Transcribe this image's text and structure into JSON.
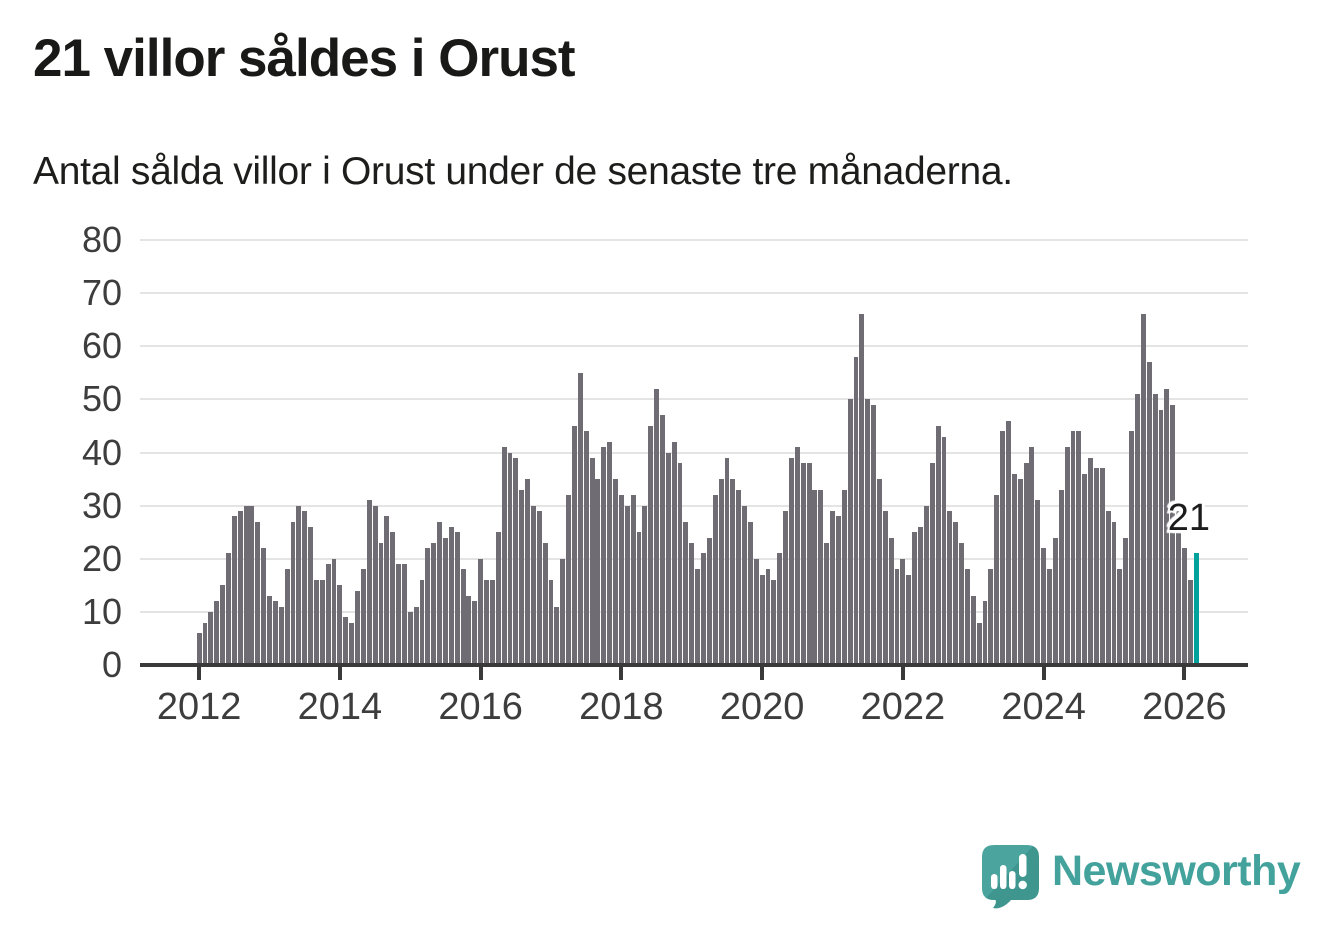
{
  "header": {
    "title": "21 villor såldes i Orust",
    "subtitle": "Antal sålda villor i Orust under de senaste tre månaderna."
  },
  "chart_data": {
    "type": "bar",
    "title": "21 villor såldes i Orust",
    "subtitle": "Antal sålda villor i Orust under de senaste tre månaderna.",
    "ylabel": "",
    "xlabel": "",
    "ylim": [
      0,
      80
    ],
    "y_ticks": [
      0,
      10,
      20,
      30,
      40,
      50,
      60,
      70,
      80
    ],
    "x_tick_labels": [
      "2012",
      "2014",
      "2016",
      "2018",
      "2020",
      "2022",
      "2024",
      "2026"
    ],
    "months_per_tick_step": 24,
    "grid": "horizontal",
    "bar_color": "#6F6D73",
    "highlight_color": "#00A29B",
    "highlight_index": 170,
    "values": [
      6,
      8,
      10,
      12,
      15,
      21,
      28,
      29,
      30,
      30,
      27,
      22,
      13,
      12,
      11,
      18,
      27,
      30,
      29,
      26,
      16,
      16,
      19,
      20,
      15,
      9,
      8,
      14,
      18,
      31,
      30,
      23,
      28,
      25,
      19,
      19,
      10,
      11,
      16,
      22,
      23,
      27,
      24,
      26,
      25,
      18,
      13,
      12,
      20,
      16,
      16,
      25,
      41,
      40,
      39,
      33,
      35,
      30,
      29,
      23,
      16,
      11,
      20,
      32,
      45,
      55,
      44,
      39,
      35,
      41,
      42,
      35,
      32,
      30,
      32,
      25,
      30,
      45,
      52,
      47,
      40,
      42,
      38,
      27,
      23,
      18,
      21,
      24,
      32,
      35,
      39,
      35,
      33,
      30,
      27,
      20,
      17,
      18,
      16,
      21,
      29,
      39,
      41,
      38,
      38,
      33,
      33,
      23,
      29,
      28,
      33,
      50,
      58,
      66,
      50,
      49,
      35,
      29,
      24,
      18,
      20,
      17,
      25,
      26,
      30,
      38,
      45,
      43,
      29,
      27,
      23,
      18,
      13,
      8,
      12,
      18,
      32,
      44,
      46,
      36,
      35,
      38,
      41,
      31,
      22,
      18,
      24,
      33,
      41,
      44,
      44,
      36,
      39,
      37,
      37,
      29,
      27,
      18,
      24,
      44,
      51,
      66,
      57,
      51,
      48,
      52,
      49,
      29,
      22,
      16,
      21
    ],
    "annotation": {
      "text": "21",
      "value": 21
    }
  },
  "footer": {
    "logo_text": "Newsworthy",
    "logo_color": "#43A29B"
  }
}
